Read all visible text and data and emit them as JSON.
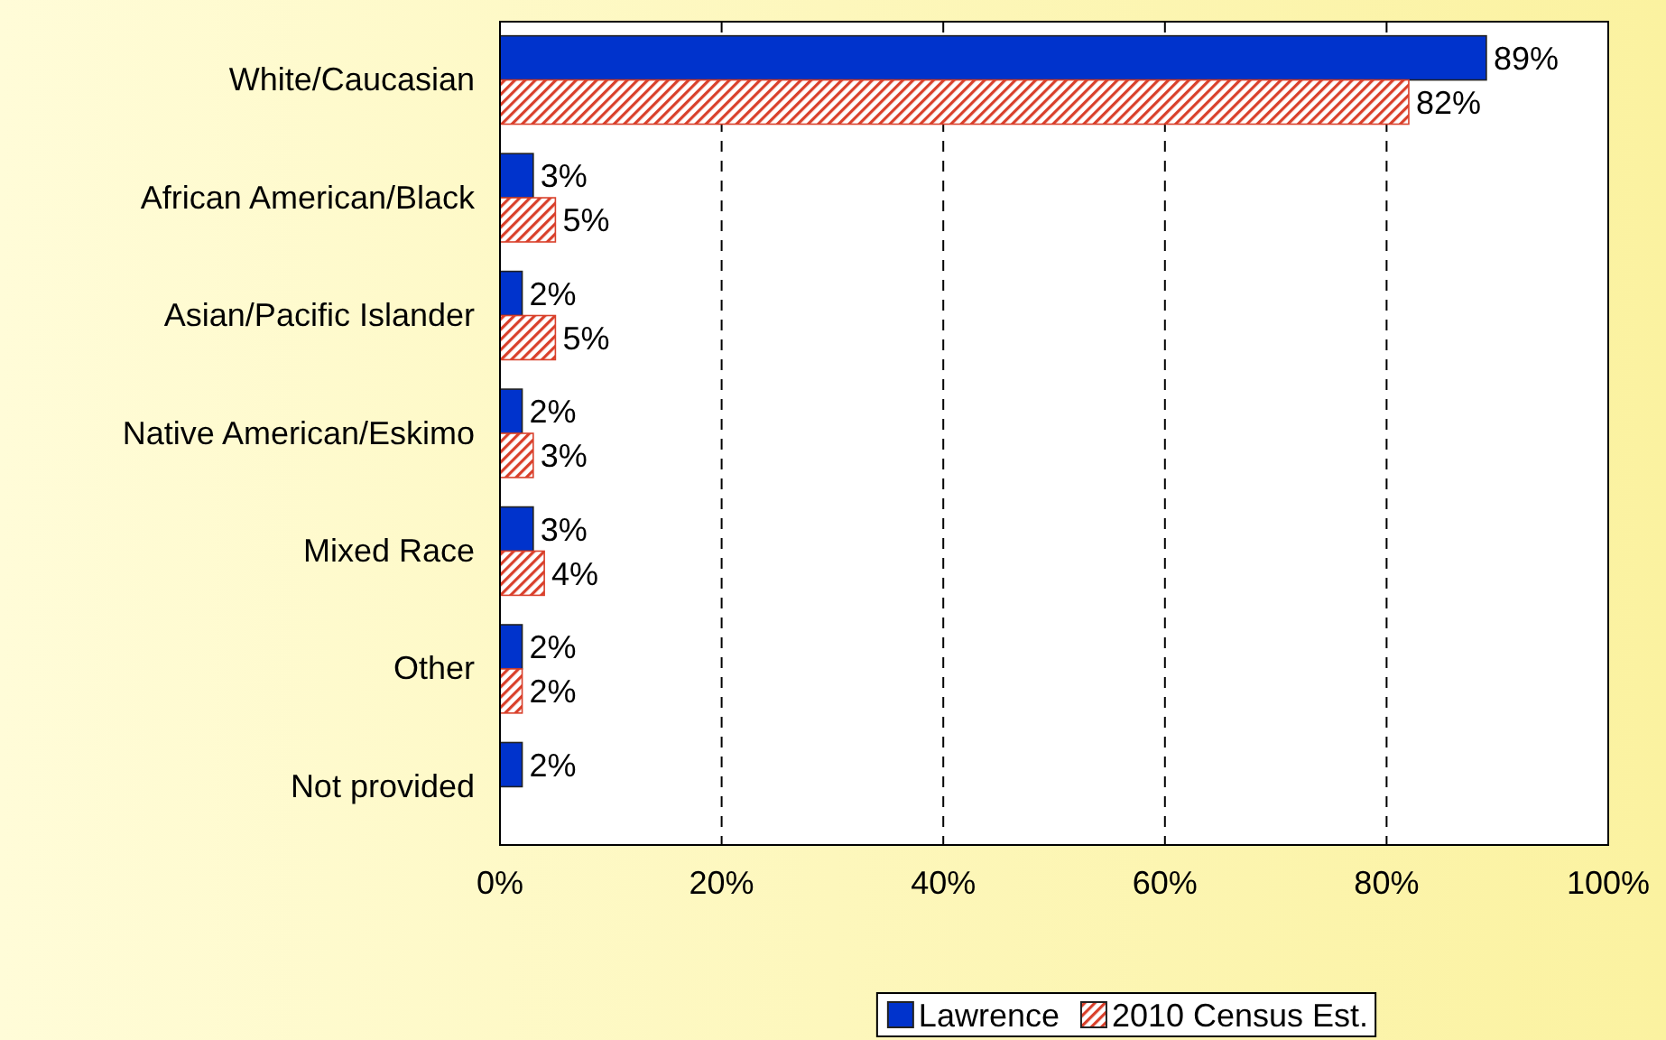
{
  "chart_data": {
    "type": "bar",
    "orientation": "horizontal",
    "categories": [
      "White/Caucasian",
      "African American/Black",
      "Asian/Pacific Islander",
      "Native American/Eskimo",
      "Mixed Race",
      "Other",
      "Not provided"
    ],
    "series": [
      {
        "name": "Lawrence",
        "color": "#0033cc",
        "values": [
          89,
          3,
          2,
          2,
          3,
          2,
          2
        ],
        "value_labels": [
          "89%",
          "3%",
          "2%",
          "2%",
          "3%",
          "2%",
          "2%"
        ]
      },
      {
        "name": "2010 Census Est.",
        "color": "#d9402b",
        "values": [
          82,
          5,
          5,
          3,
          4,
          2,
          null
        ],
        "value_labels": [
          "82%",
          "5%",
          "5%",
          "3%",
          "4%",
          "2%",
          null
        ]
      }
    ],
    "xlim": [
      0,
      100
    ],
    "xticks": [
      {
        "value": 0,
        "label": "0%"
      },
      {
        "value": 20,
        "label": "20%"
      },
      {
        "value": 40,
        "label": "40%"
      },
      {
        "value": 60,
        "label": "60%"
      },
      {
        "value": 80,
        "label": "80%"
      },
      {
        "value": 100,
        "label": "100%"
      }
    ],
    "grid": "x",
    "legend": "bottom"
  }
}
